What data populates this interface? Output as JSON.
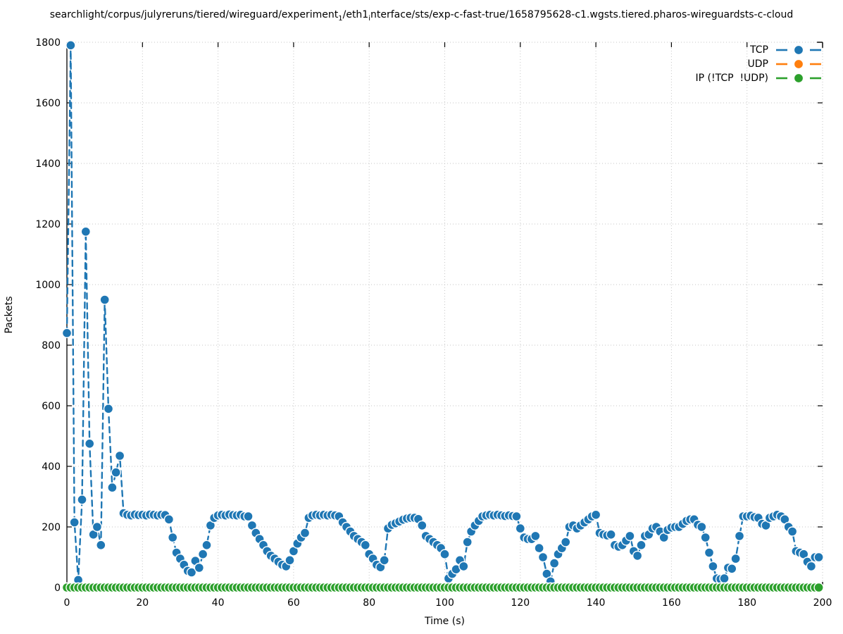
{
  "header": {
    "title_segments": [
      {
        "text": "searchlight/corpus/julyreruns/tiered/wireguard/experiment"
      },
      {
        "sub": "1"
      },
      {
        "text": "/eth1"
      },
      {
        "sub": "i"
      },
      {
        "text": "nterface/sts/exp-c-fast-true/1658795628-c1.wgsts.tiered.pharos-wireguardsts-c-cloud"
      }
    ],
    "title_plain": "searchlight/corpus/julyreruns/tiered/wireguard/experiment_1/eth1_interface/sts/exp-c-fast-true/1658795628-c1.wgsts.tiered.pharos-wireguardsts-c-cloud"
  },
  "legend": {
    "items": [
      {
        "label": "TCP",
        "color": "#1f77b4"
      },
      {
        "label": "UDP",
        "color": "#ff7f0e"
      },
      {
        "label": "IP (!TCP  !UDP)",
        "color": "#2ca02c"
      }
    ]
  },
  "chart_data": {
    "type": "line",
    "title": "searchlight/corpus/julyreruns/tiered/wireguard/experiment_1/eth1_interface/sts/exp-c-fast-true/1658795628-c1.wgsts.tiered.pharos-wireguardsts-c-cloud",
    "xlabel": "Time (s)",
    "ylabel": "Packets",
    "xlim": [
      0,
      200
    ],
    "ylim": [
      0,
      1800
    ],
    "xticks": [
      0,
      20,
      40,
      60,
      80,
      100,
      120,
      140,
      160,
      180,
      200
    ],
    "yticks": [
      0,
      200,
      400,
      600,
      800,
      1000,
      1200,
      1400,
      1600,
      1800
    ],
    "grid": true,
    "legend_position": "top-right",
    "marker": "circle",
    "linestyle": "dashed",
    "series": [
      {
        "name": "TCP",
        "color": "#1f77b4",
        "x_start": 0,
        "x_step": 1,
        "values": [
          840,
          1790,
          215,
          25,
          290,
          1175,
          475,
          175,
          200,
          140,
          950,
          590,
          330,
          380,
          435,
          245,
          240,
          238,
          241,
          239,
          240,
          238,
          241,
          240,
          238,
          240,
          239,
          225,
          165,
          115,
          95,
          75,
          55,
          50,
          88,
          65,
          110,
          140,
          205,
          230,
          238,
          240,
          238,
          241,
          239,
          238,
          240,
          235,
          235,
          205,
          180,
          160,
          140,
          120,
          105,
          95,
          85,
          75,
          70,
          90,
          120,
          145,
          165,
          180,
          230,
          238,
          240,
          238,
          240,
          238,
          240,
          238,
          235,
          215,
          200,
          185,
          170,
          160,
          150,
          140,
          110,
          95,
          75,
          67,
          90,
          195,
          207,
          212,
          218,
          224,
          228,
          230,
          230,
          226,
          205,
          170,
          160,
          150,
          140,
          130,
          110,
          30,
          45,
          60,
          90,
          70,
          150,
          185,
          205,
          220,
          235,
          238,
          240,
          238,
          240,
          238,
          236,
          238,
          236,
          235,
          195,
          165,
          160,
          160,
          170,
          130,
          100,
          45,
          20,
          80,
          110,
          130,
          150,
          200,
          205,
          195,
          205,
          215,
          225,
          235,
          240,
          180,
          175,
          172,
          175,
          140,
          135,
          140,
          155,
          170,
          120,
          105,
          140,
          170,
          175,
          195,
          200,
          185,
          165,
          190,
          198,
          200,
          200,
          210,
          220,
          225,
          225,
          207,
          200,
          165,
          115,
          70,
          30,
          28,
          30,
          65,
          62,
          95,
          170,
          235,
          235,
          237,
          232,
          230,
          210,
          205,
          230,
          235,
          240,
          235,
          225,
          200,
          185,
          120,
          115,
          110,
          85,
          70,
          100,
          100
        ]
      },
      {
        "name": "UDP",
        "color": "#ff7f0e",
        "x_start": 0,
        "x_step": 1,
        "values_constant": 0,
        "count": 200
      },
      {
        "name": "IP (!TCP  !UDP)",
        "color": "#2ca02c",
        "x_start": 0,
        "x_step": 1,
        "values_constant": 0,
        "count": 200
      }
    ]
  }
}
